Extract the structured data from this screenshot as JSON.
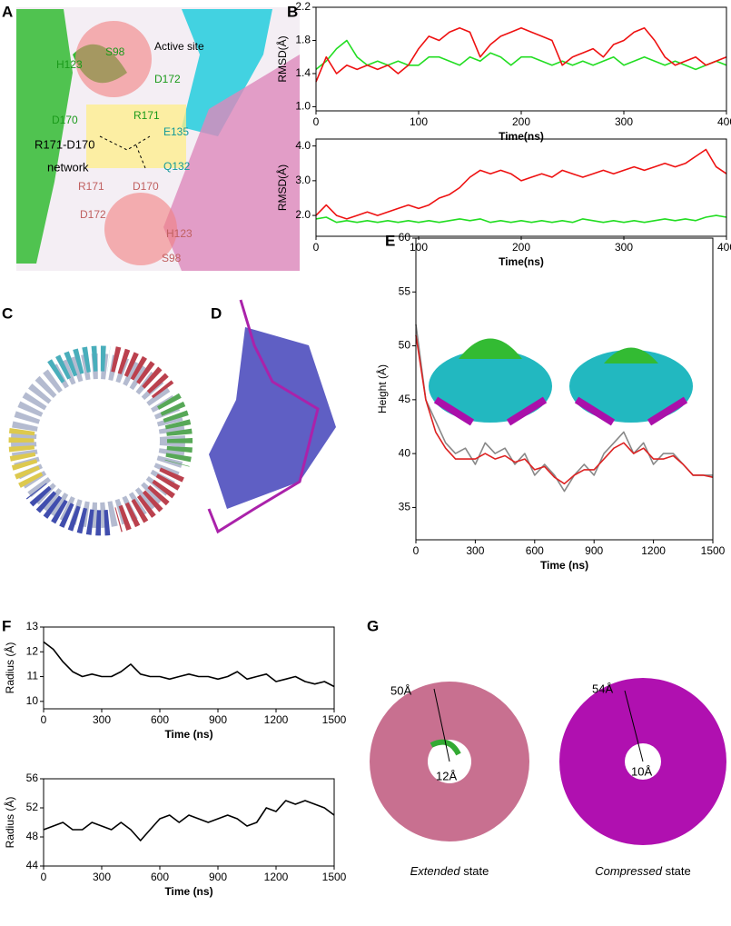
{
  "panels": {
    "letters": [
      "A",
      "B",
      "C",
      "D",
      "E",
      "F",
      "G"
    ],
    "a_labels": {
      "active_site": "Active site",
      "s98_top": "S98",
      "h123_top": "H123",
      "d172_top": "D172",
      "d170_top": "D170",
      "r171_top": "R171",
      "e135": "E135",
      "network_1": "R171-D170",
      "network_2": "network",
      "q132": "Q132",
      "r171_bottom": "R171",
      "d170_bottom": "D170",
      "d172_bottom": "D172",
      "h123_bottom": "H123",
      "s98_bottom": "S98"
    },
    "g_labels": {
      "outer_left": "50Å",
      "inner_left": "12Å",
      "outer_right": "54Å",
      "inner_right": "10Å",
      "left_caption": {
        "emphasis": "Extended",
        "rest": "state"
      },
      "right_caption": {
        "emphasis": "Compressed",
        "rest": "state"
      }
    }
  },
  "chart_data": [
    {
      "type": "line",
      "xlabel": "Time(ns)",
      "ylabel": "RMSD(Å)",
      "xlim": [
        0,
        400
      ],
      "ylim": [
        0.95,
        2.2
      ],
      "xticks": [
        0,
        100,
        200,
        300,
        400
      ],
      "yticks": [
        {
          "value": 1,
          "label": "1.0"
        },
        1.4,
        1.8,
        2.2
      ],
      "x": [
        0,
        10,
        20,
        30,
        40,
        50,
        60,
        70,
        80,
        90,
        100,
        110,
        120,
        130,
        140,
        150,
        160,
        170,
        180,
        190,
        200,
        210,
        220,
        230,
        240,
        250,
        260,
        270,
        280,
        290,
        300,
        310,
        320,
        330,
        340,
        350,
        360,
        370,
        380,
        390,
        400
      ],
      "series": [
        {
          "name": "green",
          "color": "#22dd22",
          "values": [
            1.45,
            1.55,
            1.7,
            1.8,
            1.6,
            1.5,
            1.55,
            1.5,
            1.55,
            1.5,
            1.5,
            1.6,
            1.6,
            1.55,
            1.5,
            1.6,
            1.55,
            1.65,
            1.6,
            1.5,
            1.6,
            1.6,
            1.55,
            1.5,
            1.55,
            1.5,
            1.55,
            1.5,
            1.55,
            1.6,
            1.5,
            1.55,
            1.6,
            1.55,
            1.5,
            1.55,
            1.5,
            1.45,
            1.5,
            1.55,
            1.5
          ]
        },
        {
          "name": "red",
          "color": "#ee1111",
          "values": [
            1.3,
            1.6,
            1.4,
            1.5,
            1.45,
            1.5,
            1.45,
            1.5,
            1.4,
            1.5,
            1.7,
            1.85,
            1.8,
            1.9,
            1.95,
            1.9,
            1.6,
            1.75,
            1.85,
            1.9,
            1.95,
            1.9,
            1.85,
            1.8,
            1.5,
            1.6,
            1.65,
            1.7,
            1.6,
            1.75,
            1.8,
            1.9,
            1.95,
            1.8,
            1.6,
            1.5,
            1.55,
            1.6,
            1.5,
            1.55,
            1.6
          ]
        }
      ]
    },
    {
      "type": "line",
      "xlabel": "Time(ns)",
      "ylabel": "RMSD(Å)",
      "xlim": [
        0,
        400
      ],
      "ylim": [
        1.4,
        4.2
      ],
      "xticks": [
        0,
        100,
        200,
        300,
        400
      ],
      "yticks": [
        {
          "value": 2,
          "label": "2.0"
        },
        {
          "value": 3,
          "label": "3.0"
        },
        {
          "value": 4,
          "label": "4.0"
        }
      ],
      "x": [
        0,
        10,
        20,
        30,
        40,
        50,
        60,
        70,
        80,
        90,
        100,
        110,
        120,
        130,
        140,
        150,
        160,
        170,
        180,
        190,
        200,
        210,
        220,
        230,
        240,
        250,
        260,
        270,
        280,
        290,
        300,
        310,
        320,
        330,
        340,
        350,
        360,
        370,
        380,
        390,
        400
      ],
      "series": [
        {
          "name": "green",
          "color": "#22dd22",
          "values": [
            1.9,
            1.95,
            1.8,
            1.85,
            1.8,
            1.85,
            1.8,
            1.85,
            1.8,
            1.85,
            1.8,
            1.85,
            1.8,
            1.85,
            1.9,
            1.85,
            1.9,
            1.8,
            1.85,
            1.8,
            1.85,
            1.8,
            1.85,
            1.8,
            1.85,
            1.8,
            1.9,
            1.85,
            1.8,
            1.85,
            1.8,
            1.85,
            1.8,
            1.85,
            1.9,
            1.85,
            1.9,
            1.85,
            1.95,
            2.0,
            1.95
          ]
        },
        {
          "name": "red",
          "color": "#ee1111",
          "values": [
            2.0,
            2.3,
            2.0,
            1.9,
            2.0,
            2.1,
            2.0,
            2.1,
            2.2,
            2.3,
            2.2,
            2.3,
            2.5,
            2.6,
            2.8,
            3.1,
            3.3,
            3.2,
            3.3,
            3.2,
            3.0,
            3.1,
            3.2,
            3.1,
            3.3,
            3.2,
            3.1,
            3.2,
            3.3,
            3.2,
            3.3,
            3.4,
            3.3,
            3.4,
            3.5,
            3.4,
            3.5,
            3.7,
            3.9,
            3.4,
            3.2
          ]
        }
      ]
    },
    {
      "type": "line",
      "xlabel": "Time (ns)",
      "ylabel": "Height (Å)",
      "xlim": [
        0,
        1500
      ],
      "ylim": [
        32,
        60
      ],
      "xticks": [
        0,
        300,
        600,
        900,
        1200,
        1500
      ],
      "yticks": [
        35,
        40,
        45,
        50,
        55,
        60
      ],
      "x": [
        0,
        50,
        100,
        150,
        200,
        250,
        300,
        350,
        400,
        450,
        500,
        550,
        600,
        650,
        700,
        750,
        800,
        850,
        900,
        950,
        1000,
        1050,
        1100,
        1150,
        1200,
        1250,
        1300,
        1350,
        1400,
        1450,
        1500
      ],
      "series": [
        {
          "name": "raw",
          "color": "#888888",
          "values": [
            52,
            45,
            43,
            41,
            40,
            40.5,
            39,
            41,
            40,
            40.5,
            39,
            40,
            38,
            39,
            38,
            36.5,
            38,
            39,
            38,
            40,
            41,
            42,
            40,
            41,
            39,
            40,
            40,
            39,
            38,
            38,
            38
          ]
        },
        {
          "name": "smoothed",
          "color": "#dd2222",
          "values": [
            51,
            45,
            42,
            40.5,
            39.5,
            39.5,
            39.5,
            40,
            39.5,
            39.8,
            39.2,
            39.5,
            38.5,
            38.8,
            37.8,
            37.2,
            38,
            38.5,
            38.5,
            39.5,
            40.5,
            41,
            40,
            40.5,
            39.5,
            39.5,
            39.8,
            39,
            38,
            38,
            37.8
          ]
        }
      ]
    },
    {
      "type": "line",
      "xlabel": "Time (ns)",
      "ylabel": "Radius (Å)",
      "xlim": [
        0,
        1500
      ],
      "ylim": [
        9.7,
        13
      ],
      "xticks": [
        0,
        300,
        600,
        900,
        1200,
        1500
      ],
      "yticks": [
        10,
        11,
        12,
        13
      ],
      "x": [
        0,
        50,
        100,
        150,
        200,
        250,
        300,
        350,
        400,
        450,
        500,
        550,
        600,
        650,
        700,
        750,
        800,
        850,
        900,
        950,
        1000,
        1050,
        1100,
        1150,
        1200,
        1250,
        1300,
        1350,
        1400,
        1450,
        1500
      ],
      "series": [
        {
          "name": "radius",
          "color": "#000000",
          "values": [
            12.4,
            12.1,
            11.6,
            11.2,
            11.0,
            11.1,
            11.0,
            11.0,
            11.2,
            11.5,
            11.1,
            11.0,
            11.0,
            10.9,
            11.0,
            11.1,
            11.0,
            11.0,
            10.9,
            11.0,
            11.2,
            10.9,
            11.0,
            11.1,
            10.8,
            10.9,
            11.0,
            10.8,
            10.7,
            10.8,
            10.6
          ]
        }
      ]
    },
    {
      "type": "line",
      "xlabel": "Time (ns)",
      "ylabel": "Radius (Å)",
      "xlim": [
        0,
        1500
      ],
      "ylim": [
        44,
        56
      ],
      "xticks": [
        0,
        300,
        600,
        900,
        1200,
        1500
      ],
      "yticks": [
        44,
        48,
        52,
        56
      ],
      "x": [
        0,
        50,
        100,
        150,
        200,
        250,
        300,
        350,
        400,
        450,
        500,
        550,
        600,
        650,
        700,
        750,
        800,
        850,
        900,
        950,
        1000,
        1050,
        1100,
        1150,
        1200,
        1250,
        1300,
        1350,
        1400,
        1450,
        1500
      ],
      "series": [
        {
          "name": "radius",
          "color": "#000000",
          "values": [
            49,
            49.5,
            50,
            49,
            49,
            50,
            49.5,
            49,
            50,
            49,
            47.5,
            49,
            50.5,
            51,
            50,
            51,
            50.5,
            50,
            50.5,
            51,
            50.5,
            49.5,
            50,
            52,
            51.5,
            53,
            52.5,
            53,
            52.5,
            52,
            51
          ]
        }
      ]
    }
  ]
}
